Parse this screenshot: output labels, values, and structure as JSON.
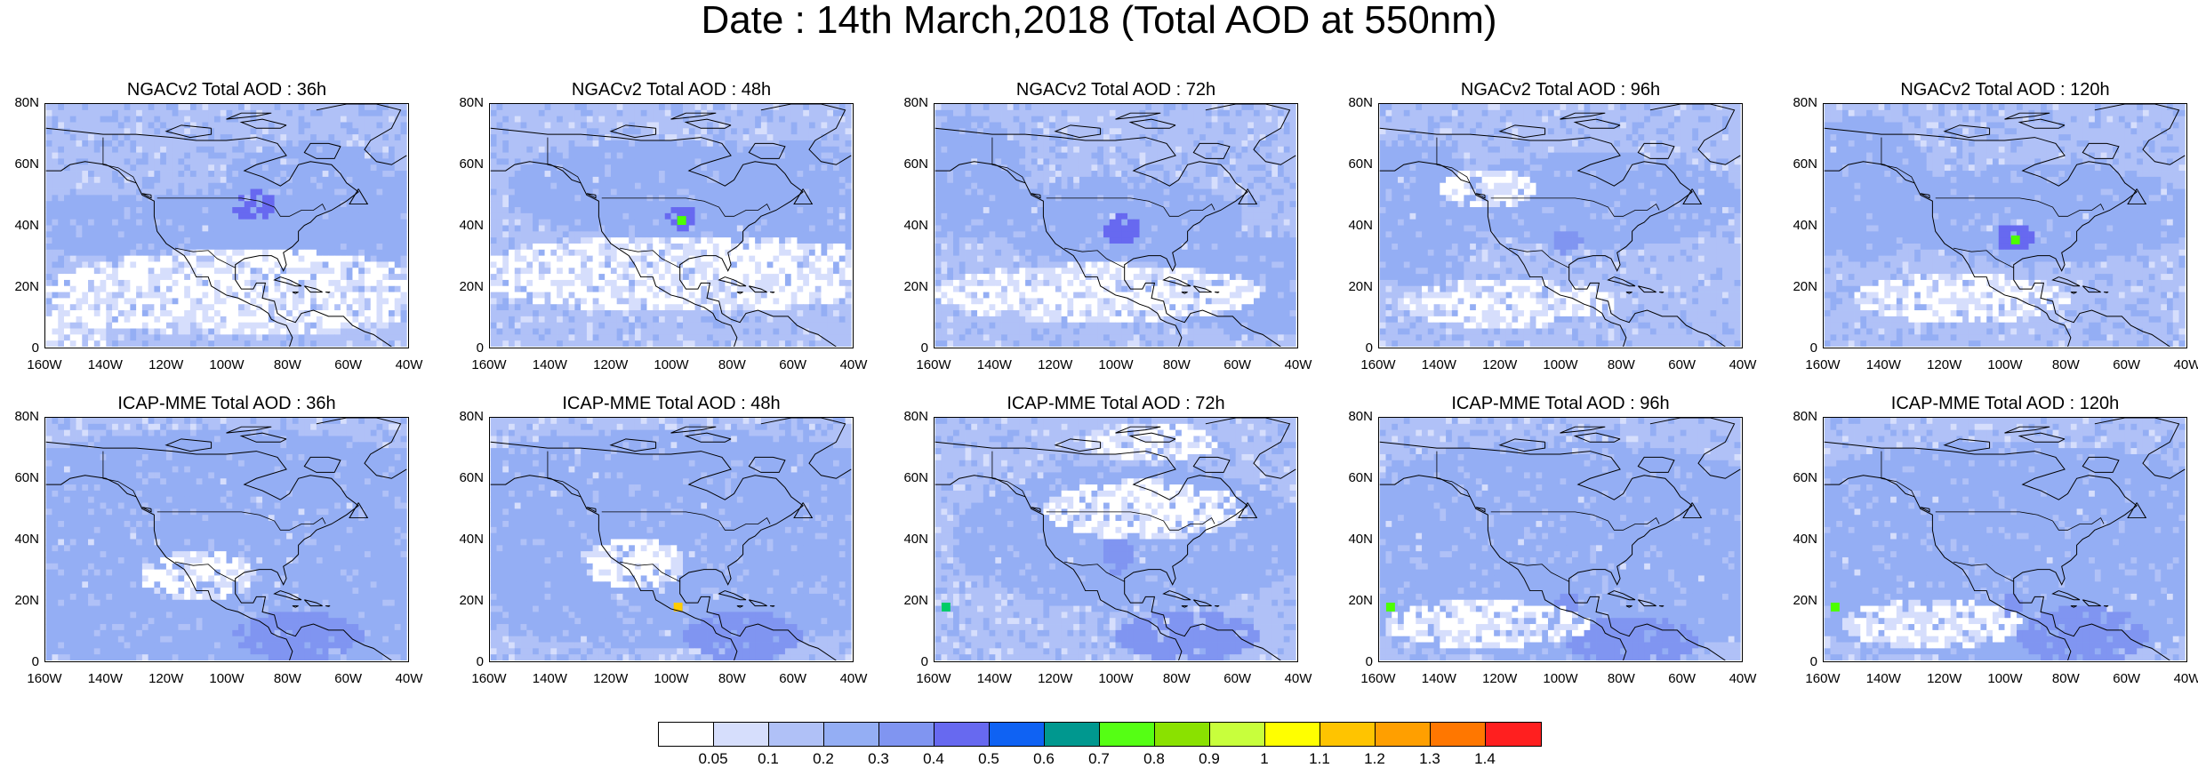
{
  "title": "Date : 14th March,2018 (Total AOD at 550nm)",
  "rows": [
    {
      "model": "NGACv2",
      "panels": [
        {
          "title": "NGACv2 Total AOD : 36h",
          "scene": {
            "base": 2,
            "clean": [
              [
                0.55,
                0.78,
                0.55,
                0.18
              ],
              [
                0.07,
                0.95,
                0.1,
                0.1
              ]
            ],
            "bands": [
              [
                0.3,
                0.5,
                0.7,
                0.12,
                3
              ],
              [
                0.75,
                0.45,
                0.3,
                0.3,
                3
              ],
              [
                0.58,
                0.42,
                0.06,
                0.06,
                5
              ]
            ],
            "hotspots": []
          }
        },
        {
          "title": "NGACv2 Total AOD : 48h",
          "scene": {
            "base": 2,
            "clean": [
              [
                0.55,
                0.7,
                0.6,
                0.16
              ]
            ],
            "bands": [
              [
                0.45,
                0.35,
                0.4,
                0.2,
                3
              ],
              [
                0.85,
                0.45,
                0.25,
                0.3,
                3
              ],
              [
                0.53,
                0.47,
                0.04,
                0.05,
                5
              ]
            ],
            "hotspots": [
              [
                0.53,
                0.48,
                "#4cff00"
              ]
            ]
          }
        },
        {
          "title": "NGACv2 Total AOD : 72h",
          "scene": {
            "base": 2,
            "clean": [
              [
                0.45,
                0.78,
                0.45,
                0.12
              ]
            ],
            "bands": [
              [
                0.1,
                0.3,
                0.15,
                0.25,
                3
              ],
              [
                0.5,
                0.48,
                0.35,
                0.18,
                3
              ],
              [
                0.52,
                0.52,
                0.05,
                0.06,
                5
              ],
              [
                0.9,
                0.75,
                0.3,
                0.2,
                3
              ]
            ],
            "hotspots": []
          }
        },
        {
          "title": "NGACv2 Total AOD : 96h",
          "scene": {
            "base": 2,
            "clean": [
              [
                0.35,
                0.82,
                0.3,
                0.1
              ],
              [
                0.3,
                0.35,
                0.14,
                0.08
              ]
            ],
            "bands": [
              [
                0.1,
                0.45,
                0.2,
                0.3,
                3
              ],
              [
                0.6,
                0.4,
                0.4,
                0.2,
                3
              ],
              [
                0.52,
                0.57,
                0.04,
                0.05,
                4
              ]
            ],
            "hotspots": []
          }
        },
        {
          "title": "NGACv2 Total AOD : 120h",
          "scene": {
            "base": 2,
            "clean": [
              [
                0.38,
                0.8,
                0.3,
                0.1
              ]
            ],
            "bands": [
              [
                0.1,
                0.35,
                0.2,
                0.3,
                3
              ],
              [
                0.6,
                0.45,
                0.45,
                0.2,
                3
              ],
              [
                0.53,
                0.55,
                0.05,
                0.06,
                5
              ]
            ],
            "hotspots": [
              [
                0.53,
                0.56,
                "#4cff00"
              ]
            ]
          }
        }
      ]
    },
    {
      "model": "ICAP-MME",
      "panels": [
        {
          "title": "ICAP-MME Total AOD : 36h",
          "scene": {
            "base": 2,
            "clean": [
              [
                0.42,
                0.65,
                0.16,
                0.1
              ]
            ],
            "bands": [
              [
                0.5,
                0.55,
                0.9,
                0.5,
                3
              ],
              [
                0.7,
                0.9,
                0.18,
                0.1,
                4
              ],
              [
                0.22,
                0.2,
                0.3,
                0.18,
                1
              ]
            ],
            "hotspots": []
          }
        },
        {
          "title": "ICAP-MME Total AOD : 48h",
          "scene": {
            "base": 2,
            "clean": [
              [
                0.4,
                0.6,
                0.14,
                0.1
              ]
            ],
            "bands": [
              [
                0.5,
                0.5,
                0.9,
                0.45,
                3
              ],
              [
                0.7,
                0.9,
                0.16,
                0.1,
                4
              ],
              [
                0.25,
                0.25,
                0.3,
                0.2,
                1
              ]
            ],
            "hotspots": [
              [
                0.52,
                0.78,
                "#ffcc00"
              ]
            ]
          }
        },
        {
          "title": "ICAP-MME Total AOD : 72h",
          "scene": {
            "base": 2,
            "clean": [
              [
                0.58,
                0.38,
                0.28,
                0.12
              ],
              [
                0.6,
                0.1,
                0.18,
                0.08
              ]
            ],
            "bands": [
              [
                0.55,
                0.5,
                0.5,
                0.3,
                3
              ],
              [
                0.7,
                0.9,
                0.2,
                0.1,
                4
              ],
              [
                0.51,
                0.55,
                0.04,
                0.1,
                4
              ]
            ],
            "hotspots": [
              [
                0.03,
                0.78,
                "#00cc66"
              ]
            ]
          }
        },
        {
          "title": "ICAP-MME Total AOD : 96h",
          "scene": {
            "base": 2,
            "clean": [
              [
                0.3,
                0.85,
                0.28,
                0.1
              ]
            ],
            "bands": [
              [
                0.5,
                0.55,
                0.8,
                0.45,
                3
              ],
              [
                0.7,
                0.92,
                0.18,
                0.1,
                4
              ],
              [
                0.52,
                0.77,
                0.03,
                0.05,
                4
              ]
            ],
            "hotspots": [
              [
                0.03,
                0.78,
                "#4cff00"
              ]
            ]
          }
        },
        {
          "title": "ICAP-MME Total AOD : 120h",
          "scene": {
            "base": 2,
            "clean": [
              [
                0.3,
                0.85,
                0.25,
                0.1
              ]
            ],
            "bands": [
              [
                0.5,
                0.55,
                0.8,
                0.45,
                3
              ],
              [
                0.72,
                0.9,
                0.18,
                0.12,
                4
              ],
              [
                0.52,
                0.77,
                0.03,
                0.05,
                4
              ]
            ],
            "hotspots": [
              [
                0.03,
                0.78,
                "#4cff00"
              ]
            ]
          }
        }
      ]
    }
  ],
  "lat_ticks": [
    "80N",
    "60N",
    "40N",
    "20N",
    "0"
  ],
  "lon_ticks": [
    "160W",
    "140W",
    "120W",
    "100W",
    "80W",
    "60W",
    "40W"
  ],
  "legend": {
    "colors": [
      "#ffffff",
      "#d6defc",
      "#b0c1f7",
      "#94aef4",
      "#8095f1",
      "#6769f0",
      "#0f62f3",
      "#00988f",
      "#55ff14",
      "#8ae100",
      "#c8ff3c",
      "#ffff00",
      "#ffc400",
      "#ff9f00",
      "#ff7700",
      "#ff1f1f"
    ],
    "labels": [
      "0.05",
      "0.1",
      "0.2",
      "0.3",
      "0.4",
      "0.5",
      "0.6",
      "0.7",
      "0.8",
      "0.9",
      "1",
      "1.1",
      "1.2",
      "1.3",
      "1.4"
    ]
  }
}
